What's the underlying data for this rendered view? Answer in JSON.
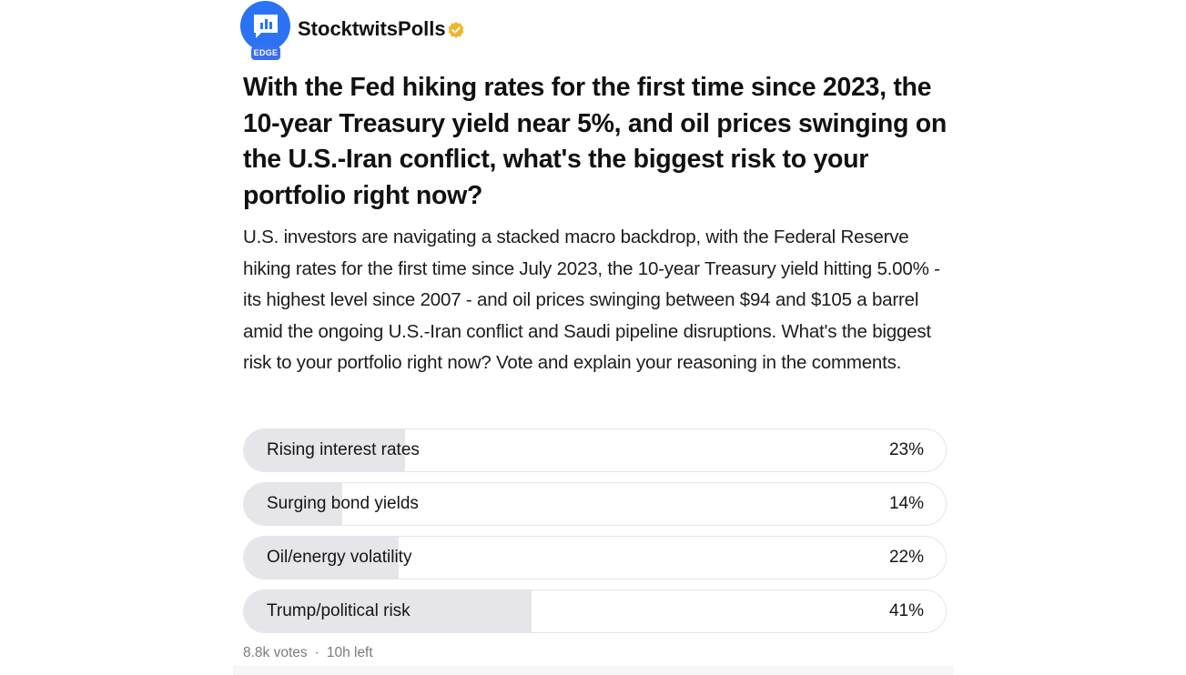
{
  "author": {
    "name": "StocktwitsPolls",
    "badge": "EDGE",
    "avatar_icon": "bar-chart-chat-icon",
    "verified_icon": "verified-check-icon",
    "avatar_color": "#2b73f3",
    "verified_color": "#f0b52b"
  },
  "post": {
    "title": "With the Fed hiking rates for the first time since 2023, the 10-year Treasury yield near 5%, and oil prices swinging on the U.S.-Iran conflict, what's the biggest risk to your portfolio right now?",
    "body": "U.S. investors are navigating a stacked macro backdrop, with the Federal Reserve hiking rates for the first time since July 2023, the 10-year Treasury yield hitting 5.00% - its highest level since 2007 - and oil prices swinging between $94 and $105 a barrel amid the ongoing U.S.-Iran conflict and Saudi pipeline disruptions. What's the biggest risk to your portfolio right now? Vote and explain your reasoning in the comments."
  },
  "poll": {
    "options": [
      {
        "label": "Rising interest rates",
        "percent": "23%",
        "fill": 23
      },
      {
        "label": "Surging bond yields",
        "percent": "14%",
        "fill": 14
      },
      {
        "label": "Oil/energy volatility",
        "percent": "22%",
        "fill": 22
      },
      {
        "label": "Trump/political risk",
        "percent": "41%",
        "fill": 41
      }
    ],
    "votes": "8.8k votes",
    "separator": "·",
    "time_left": "10h left"
  }
}
